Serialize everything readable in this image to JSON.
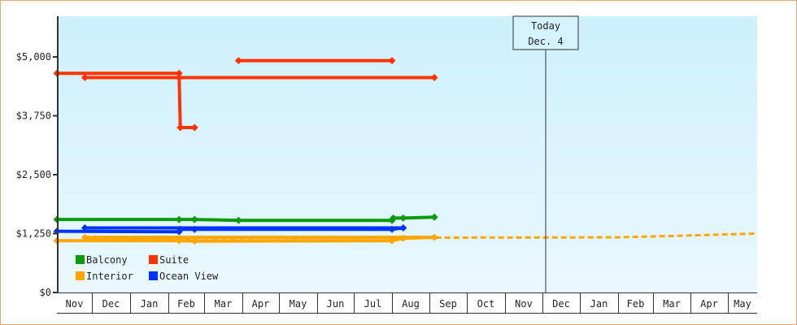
{
  "chart_data": {
    "type": "line",
    "title": "",
    "xlabel": "",
    "ylabel": "",
    "ylim": [
      0,
      5850
    ],
    "y_ticks": [
      "$0",
      "$1,250",
      "$2,500",
      "$3,750",
      "$5,000"
    ],
    "y_tick_values": [
      0,
      1250,
      2500,
      3750,
      5000
    ],
    "x_ticks": [
      "Nov",
      "Dec",
      "Jan",
      "Feb",
      "Mar",
      "Apr",
      "May",
      "Jun",
      "Jul",
      "Aug",
      "Sep",
      "Oct",
      "Nov",
      "Dec",
      "Jan",
      "Feb",
      "Mar",
      "Apr",
      "May"
    ],
    "grid": false,
    "legend_position": "lower-left inside",
    "today_marker": {
      "line1": "Today",
      "line2": "Dec. 4"
    },
    "series": [
      {
        "name": "Balcony",
        "color": "#0a9a0a",
        "points": [
          {
            "x": "Nov 1",
            "y": 1550
          },
          {
            "x": "Feb 10",
            "y": 1550
          },
          {
            "x": "Feb 23",
            "y": 1550
          },
          {
            "x": "Mar 28",
            "y": 1530
          },
          {
            "x": "Aug 1",
            "y": 1530
          },
          {
            "x": "Aug 2",
            "y": 1580
          },
          {
            "x": "Aug 10",
            "y": 1580
          },
          {
            "x": "Sep 5",
            "y": 1600
          }
        ]
      },
      {
        "name": "Suite",
        "color": "#ff3300",
        "segments": [
          [
            {
              "x": "Nov 1",
              "y": 4650
            },
            {
              "x": "Feb 10",
              "y": 4650
            },
            {
              "x": "Feb 11",
              "y": 3500
            },
            {
              "x": "Feb 23",
              "y": 3500
            }
          ],
          [
            {
              "x": "Mar 28",
              "y": 4920
            },
            {
              "x": "Aug 1",
              "y": 4920
            }
          ],
          [
            {
              "x": "Sep 5",
              "y": 4560
            },
            {
              "x": "Nov 25",
              "y": 4560
            }
          ]
        ]
      },
      {
        "name": "Interior",
        "color": "#ffa500",
        "points": [
          {
            "x": "Nov 1",
            "y": 1100
          },
          {
            "x": "Feb 10",
            "y": 1100
          },
          {
            "x": "Feb 23",
            "y": 1090
          },
          {
            "x": "Aug 1",
            "y": 1100
          },
          {
            "x": "Aug 10",
            "y": 1150
          },
          {
            "x": "Sep 5",
            "y": 1170
          },
          {
            "x": "Nov 25",
            "y": 1170
          },
          {
            "x": "Dec 4",
            "y": 1150
          }
        ],
        "forecast": [
          {
            "x": "Dec 4",
            "y": 1150
          },
          {
            "x": "Feb 1",
            "y": 1170
          },
          {
            "x": "Apr 1",
            "y": 1210
          },
          {
            "x": "May 31",
            "y": 1250
          }
        ]
      },
      {
        "name": "Ocean View",
        "color": "#0033ff",
        "points": [
          {
            "x": "Nov 1",
            "y": 1300
          },
          {
            "x": "Feb 10",
            "y": 1290
          },
          {
            "x": "Feb 11",
            "y": 1340
          },
          {
            "x": "Feb 23",
            "y": 1340
          },
          {
            "x": "Aug 1",
            "y": 1340
          },
          {
            "x": "Aug 10",
            "y": 1370
          },
          {
            "x": "Nov 25",
            "y": 1370
          }
        ]
      }
    ]
  },
  "legend": [
    {
      "label": "Balcony",
      "color": "#0a9a0a"
    },
    {
      "label": "Suite",
      "color": "#ff3300"
    },
    {
      "label": "Interior",
      "color": "#ffa500"
    },
    {
      "label": "Ocean View",
      "color": "#0033ff"
    }
  ],
  "colors": {
    "frame_border": "#e6a96a",
    "plot_bg_top": "#ccf0fd",
    "plot_bg_bottom": "#eaf8fd",
    "axis": "#333333"
  }
}
